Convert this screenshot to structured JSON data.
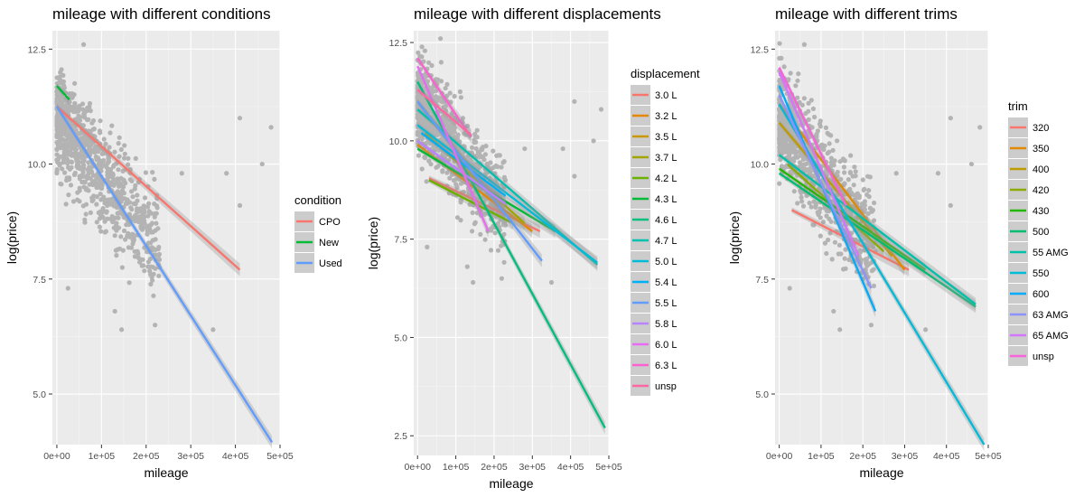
{
  "chart_data": [
    {
      "type": "scatter",
      "title": "mileage with different conditions",
      "xlabel": "mileage",
      "ylabel": "log(price)",
      "xlim": [
        -10000,
        500000
      ],
      "ylim": [
        3.9,
        12.9
      ],
      "xticks": [
        0,
        100000,
        200000,
        300000,
        400000,
        500000
      ],
      "xtick_labels": [
        "0e+00",
        "1e+05",
        "2e+05",
        "3e+05",
        "4e+05",
        "5e+05"
      ],
      "yticks": [
        5.0,
        7.5,
        10.0,
        12.5
      ],
      "ytick_labels": [
        "5.0",
        "7.5",
        "10.0",
        "12.5"
      ],
      "grid": true,
      "legend": {
        "title": "condition",
        "placement": "right"
      },
      "series": [
        {
          "name": "CPO",
          "color": "#F8766D",
          "x": [
            0,
            410000
          ],
          "y": [
            11.25,
            7.7
          ]
        },
        {
          "name": "New",
          "color": "#00BA38",
          "x": [
            0,
            28000
          ],
          "y": [
            11.7,
            11.4
          ]
        },
        {
          "name": "Used",
          "color": "#619CFF",
          "x": [
            0,
            482000
          ],
          "y": [
            11.25,
            3.95
          ]
        }
      ]
    },
    {
      "type": "scatter",
      "title": "mileage with different displacements",
      "xlabel": "mileage",
      "ylabel": "log(price)",
      "xlim": [
        -10000,
        500000
      ],
      "ylim": [
        2.0,
        12.8
      ],
      "xticks": [
        0,
        100000,
        200000,
        300000,
        400000,
        500000
      ],
      "xtick_labels": [
        "0e+00",
        "1e+05",
        "2e+05",
        "3e+05",
        "4e+05",
        "5e+05"
      ],
      "yticks": [
        2.5,
        5.0,
        7.5,
        10.0,
        12.5
      ],
      "ytick_labels": [
        "2.5",
        "5.0",
        "7.5",
        "10.0",
        "12.5"
      ],
      "grid": true,
      "legend": {
        "title": "displacement",
        "placement": "right"
      },
      "series": [
        {
          "name": "3.0 L",
          "color": "#F8766D",
          "x": [
            30000,
            320000
          ],
          "y": [
            9.05,
            7.7
          ]
        },
        {
          "name": "3.2 L",
          "color": "#E58700",
          "x": [
            0,
            300000
          ],
          "y": [
            9.9,
            7.7
          ]
        },
        {
          "name": "3.5 L",
          "color": "#C99800",
          "x": [
            0,
            220000
          ],
          "y": [
            11.0,
            8.3
          ]
        },
        {
          "name": "3.7 L",
          "color": "#A3A500",
          "x": [
            20000,
            280000
          ],
          "y": [
            10.2,
            7.9
          ]
        },
        {
          "name": "4.2 L",
          "color": "#6BB100",
          "x": [
            30000,
            250000
          ],
          "y": [
            9.0,
            7.9
          ]
        },
        {
          "name": "4.3 L",
          "color": "#00BA38",
          "x": [
            0,
            360000
          ],
          "y": [
            9.8,
            7.7
          ]
        },
        {
          "name": "4.6 L",
          "color": "#00BF7D",
          "x": [
            0,
            490000
          ],
          "y": [
            11.5,
            2.7
          ]
        },
        {
          "name": "4.7 L",
          "color": "#00C0AF",
          "x": [
            0,
            470000
          ],
          "y": [
            10.8,
            6.85
          ]
        },
        {
          "name": "5.0 L",
          "color": "#00BCD8",
          "x": [
            0,
            470000
          ],
          "y": [
            10.4,
            6.9
          ]
        },
        {
          "name": "5.4 L",
          "color": "#00B0F6",
          "x": [
            10000,
            230000
          ],
          "y": [
            10.2,
            8.6
          ]
        },
        {
          "name": "5.5 L",
          "color": "#619CFF",
          "x": [
            0,
            325000
          ],
          "y": [
            11.0,
            6.95
          ]
        },
        {
          "name": "5.8 L",
          "color": "#B983FF",
          "x": [
            0,
            230000
          ],
          "y": [
            10.0,
            8.4
          ]
        },
        {
          "name": "6.0 L",
          "color": "#E76BF3",
          "x": [
            0,
            185000
          ],
          "y": [
            11.9,
            7.7
          ]
        },
        {
          "name": "6.3 L",
          "color": "#FD61D1",
          "x": [
            0,
            140000
          ],
          "y": [
            12.1,
            10.1
          ]
        },
        {
          "name": "unsp",
          "color": "#FF67A4",
          "x": [
            0,
            140000
          ],
          "y": [
            11.3,
            10.15
          ]
        }
      ]
    },
    {
      "type": "scatter",
      "title": "mileage with different trims",
      "xlabel": "mileage",
      "ylabel": "log(price)",
      "xlim": [
        -10000,
        500000
      ],
      "ylim": [
        3.9,
        12.9
      ],
      "xticks": [
        0,
        100000,
        200000,
        300000,
        400000,
        500000
      ],
      "xtick_labels": [
        "0e+00",
        "1e+05",
        "2e+05",
        "3e+05",
        "4e+05",
        "5e+05"
      ],
      "yticks": [
        5.0,
        7.5,
        10.0,
        12.5
      ],
      "ytick_labels": [
        "5.0",
        "7.5",
        "10.0",
        "12.5"
      ],
      "grid": true,
      "legend": {
        "title": "trim",
        "placement": "right"
      },
      "series": [
        {
          "name": "320",
          "color": "#F8766D",
          "x": [
            30000,
            310000
          ],
          "y": [
            9.0,
            7.7
          ]
        },
        {
          "name": "350",
          "color": "#E18A00",
          "x": [
            0,
            300000
          ],
          "y": [
            11.3,
            7.7
          ]
        },
        {
          "name": "400",
          "color": "#BE9C00",
          "x": [
            0,
            270000
          ],
          "y": [
            10.9,
            8.0
          ]
        },
        {
          "name": "420",
          "color": "#8CAB00",
          "x": [
            20000,
            250000
          ],
          "y": [
            10.0,
            8.1
          ]
        },
        {
          "name": "430",
          "color": "#24B700",
          "x": [
            0,
            350000
          ],
          "y": [
            9.9,
            7.7
          ]
        },
        {
          "name": "500",
          "color": "#00BE70",
          "x": [
            0,
            470000
          ],
          "y": [
            9.8,
            6.9
          ]
        },
        {
          "name": "55 AMG",
          "color": "#00C1AB",
          "x": [
            0,
            470000
          ],
          "y": [
            10.2,
            6.95
          ]
        },
        {
          "name": "550",
          "color": "#00BBDA",
          "x": [
            0,
            490000
          ],
          "y": [
            11.3,
            3.9
          ]
        },
        {
          "name": "600",
          "color": "#00ACFC",
          "x": [
            0,
            230000
          ],
          "y": [
            11.7,
            6.8
          ]
        },
        {
          "name": "63 AMG",
          "color": "#8B93FF",
          "x": [
            0,
            220000
          ],
          "y": [
            11.5,
            7.3
          ]
        },
        {
          "name": "65 AMG",
          "color": "#D575FE",
          "x": [
            0,
            190000
          ],
          "y": [
            12.0,
            8.0
          ]
        },
        {
          "name": "unsp",
          "color": "#F962DD",
          "x": [
            0,
            160000
          ],
          "y": [
            12.1,
            9.1
          ]
        }
      ]
    }
  ]
}
